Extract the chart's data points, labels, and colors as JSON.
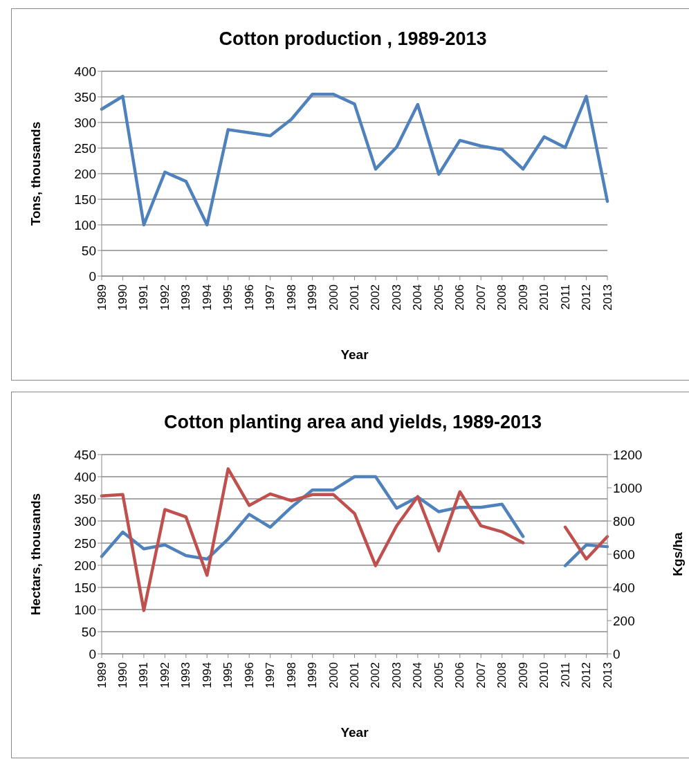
{
  "chart_data": [
    {
      "type": "line",
      "title": "Cotton production , 1989-2013",
      "xlabel": "Year",
      "ylabel": "Tons,    thousands",
      "categories": [
        "1989",
        "1990",
        "1991",
        "1992",
        "1993",
        "1994",
        "1995",
        "1996",
        "1997",
        "1998",
        "1999",
        "2000",
        "2001",
        "2002",
        "2003",
        "2004",
        "2005",
        "2006",
        "2007",
        "2008",
        "2009",
        "2010",
        "2011",
        "2012",
        "2013"
      ],
      "series": [
        {
          "color": "#4f81bd",
          "values": [
            326,
            351,
            100,
            203,
            185,
            100,
            286,
            280,
            274,
            306,
            355,
            355,
            336,
            209,
            252,
            335,
            199,
            265,
            254,
            247,
            209,
            272,
            251,
            351,
            146
          ]
        }
      ],
      "ylim": [
        0,
        400
      ],
      "yticks": [
        0,
        50,
        100,
        150,
        200,
        250,
        300,
        350,
        400
      ],
      "grid": "y",
      "legend": false,
      "marker": "none"
    },
    {
      "type": "line",
      "title": "Cotton planting area and yields, 1989-2013",
      "xlabel": "Year",
      "ylabel": "Hectars,    thousands",
      "y2label": "Kgs/ha",
      "categories": [
        "1989",
        "1990",
        "1991",
        "1992",
        "1993",
        "1994",
        "1995",
        "1996",
        "1997",
        "1998",
        "1999",
        "2000",
        "2001",
        "2002",
        "2003",
        "2004",
        "2005",
        "2006",
        "2007",
        "2008",
        "2009",
        "2010",
        "2011",
        "2012",
        "2013"
      ],
      "series": [
        {
          "color": "#4f81bd",
          "values": [
            220,
            275,
            237,
            246,
            222,
            214,
            259,
            315,
            286,
            331,
            370,
            370,
            400,
            400,
            329,
            354,
            321,
            331,
            331,
            338,
            265,
            null,
            199,
            246,
            242
          ]
        },
        {
          "color": "#c0504d",
          "axis": "y2",
          "values": [
            951,
            959,
            261,
            869,
            824,
            473,
            1114,
            894,
            963,
            922,
            959,
            959,
            845,
            531,
            771,
            947,
            620,
            976,
            771,
            735,
            669,
            null,
            763,
            571,
            706
          ]
        }
      ],
      "ylim": [
        0,
        450
      ],
      "yticks": [
        0,
        50,
        100,
        150,
        200,
        250,
        300,
        350,
        400,
        450
      ],
      "y2lim": [
        0,
        1200
      ],
      "y2ticks": [
        0,
        200,
        400,
        600,
        800,
        1000,
        1200
      ],
      "grid": "y",
      "legend": false,
      "marker": "none"
    }
  ]
}
